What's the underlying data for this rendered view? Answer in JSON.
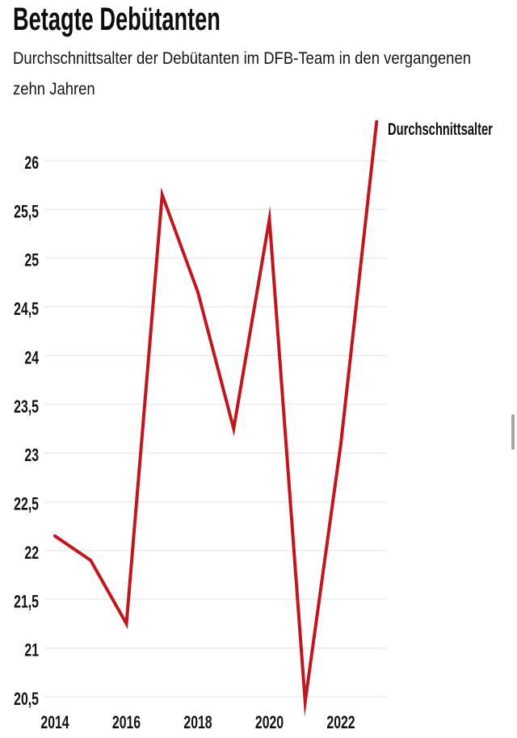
{
  "header": {
    "title": "Betagte Debütanten",
    "subtitle_lines": [
      "Durchschnittsalter der Debütanten im DFB-Team in den vergangenen",
      "zehn Jahren"
    ]
  },
  "chart_data": {
    "type": "line",
    "title": "Betagte Debütanten",
    "subtitle": "Durchschnittsalter der Debütanten im DFB-Team in den vergangenen zehn Jahren",
    "x": [
      2014,
      2015,
      2016,
      2017,
      2018,
      2019,
      2020,
      2021,
      2022,
      2023
    ],
    "series": [
      {
        "name": "Durchschnittsalter",
        "values": [
          22.15,
          21.9,
          21.25,
          25.65,
          24.65,
          23.25,
          25.4,
          20.45,
          23.1,
          26.4
        ],
        "color": "#c0171c"
      }
    ],
    "xlabel": "",
    "ylabel": "",
    "ylim": [
      20.45,
      26.45
    ],
    "xlim": [
      2014,
      2023
    ],
    "y_ticks": [
      {
        "value": 20.5,
        "label": "20,5"
      },
      {
        "value": 21,
        "label": "21"
      },
      {
        "value": 21.5,
        "label": "21,5"
      },
      {
        "value": 22,
        "label": "22"
      },
      {
        "value": 22.5,
        "label": "22,5"
      },
      {
        "value": 23,
        "label": "23"
      },
      {
        "value": 23.5,
        "label": "23,5"
      },
      {
        "value": 24,
        "label": "24"
      },
      {
        "value": 24.5,
        "label": "24,5"
      },
      {
        "value": 25,
        "label": "25"
      },
      {
        "value": 25.5,
        "label": "25,5"
      },
      {
        "value": 26,
        "label": "26"
      }
    ],
    "x_ticks": [
      {
        "value": 2014,
        "label": "2014"
      },
      {
        "value": 2016,
        "label": "2016"
      },
      {
        "value": 2018,
        "label": "2018"
      },
      {
        "value": 2020,
        "label": "2020"
      },
      {
        "value": 2022,
        "label": "2022"
      }
    ],
    "grid": true,
    "gridline_color": "#e8e8e8",
    "text_color": "#121212",
    "legend": {
      "text": "Durchschnittsalter",
      "position": "top-right"
    }
  },
  "scrollbar": {
    "present": true
  }
}
